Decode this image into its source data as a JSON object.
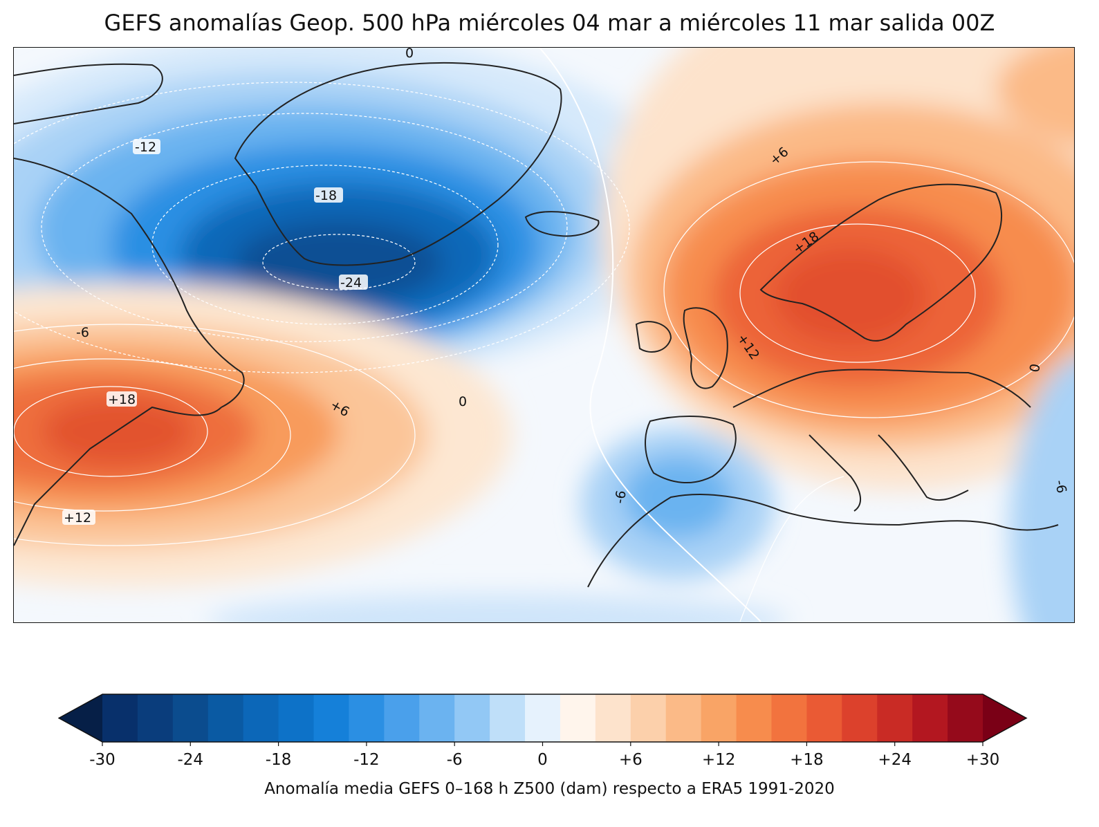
{
  "title": "GEFS anomalías Geop. 500 hPa miércoles 04 mar a miércoles 11 mar salida 00Z",
  "colorbar_label": "Anomalía media GEFS 0–168 h Z500 (dam) respecto a ERA5 1991-2020",
  "colorbar": {
    "min": -30,
    "max": 30,
    "step": 2,
    "extend": "both",
    "tick_labels": [
      "-30",
      "-24",
      "-18",
      "-12",
      "-6",
      "0",
      "+6",
      "+12",
      "+18",
      "+24",
      "+30"
    ],
    "colors": [
      "#08306b",
      "#0a3d7c",
      "#0b4c8e",
      "#0a5aa3",
      "#0c67b8",
      "#0d72c8",
      "#1580d9",
      "#2b8fe3",
      "#4aa0eb",
      "#6bb3f0",
      "#92c8f5",
      "#bfdff9",
      "#e6f2fd",
      "#fff5ec",
      "#fde3cc",
      "#fcd0ab",
      "#fbba87",
      "#f9a466",
      "#f78c4d",
      "#f2733e",
      "#ea5a34",
      "#dc412c",
      "#c92b25",
      "#b31720",
      "#950a1b"
    ],
    "under_color": "#061f47",
    "over_color": "#7a0016"
  },
  "contour_labels": [
    {
      "text": "0"
    },
    {
      "text": "-12"
    },
    {
      "text": "-18"
    },
    {
      "text": "-24"
    },
    {
      "text": "-6"
    },
    {
      "text": "+6"
    },
    {
      "text": "+18"
    },
    {
      "text": "+12"
    },
    {
      "text": "+18"
    },
    {
      "text": "+6"
    },
    {
      "text": "0"
    },
    {
      "text": "+12"
    },
    {
      "text": "0"
    },
    {
      "text": "-6"
    },
    {
      "text": "-6"
    }
  ]
}
